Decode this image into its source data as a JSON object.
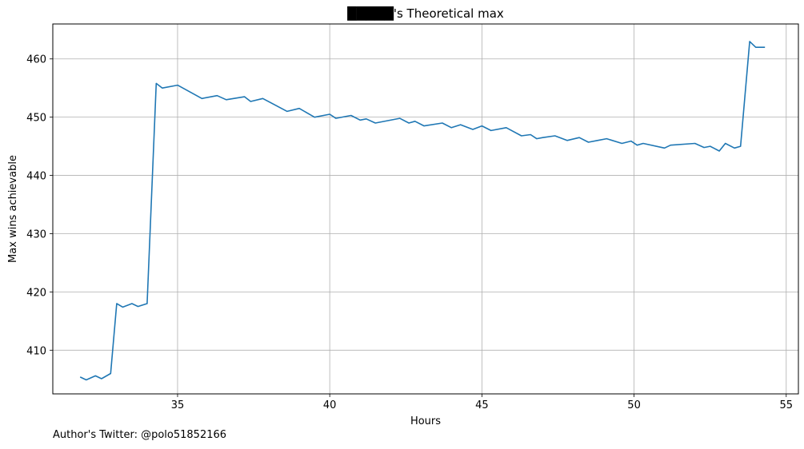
{
  "chart_data": {
    "type": "line",
    "title": "█████'s Theoretical max",
    "xlabel": "Hours",
    "ylabel": "Max wins achievable",
    "xlim": [
      30.9,
      55.4
    ],
    "ylim": [
      402.5,
      466
    ],
    "xticks": [
      35,
      40,
      45,
      50,
      55
    ],
    "yticks": [
      410,
      420,
      430,
      440,
      450,
      460
    ],
    "grid": true,
    "line_color": "#1f77b4",
    "series": [
      {
        "x": [
          31.8,
          32.0,
          32.3,
          32.5,
          32.8,
          33.0,
          33.2,
          33.5,
          33.7,
          34.0,
          34.3,
          34.5,
          35.0,
          35.8,
          36.3,
          36.6,
          37.2,
          37.4,
          37.8,
          38.6,
          39.0,
          39.5,
          40.0,
          40.2,
          40.7,
          41.0,
          41.2,
          41.5,
          42.3,
          42.6,
          42.8,
          43.1,
          43.7,
          44.0,
          44.3,
          44.7,
          45.0,
          45.3,
          45.8,
          46.3,
          46.6,
          46.8,
          47.0,
          47.4,
          47.8,
          48.2,
          48.5,
          48.8,
          49.1,
          49.6,
          49.9,
          50.1,
          50.3,
          51.0,
          51.2,
          52.0,
          52.3,
          52.5,
          52.8,
          53.0,
          53.3,
          53.5,
          53.8,
          54.0,
          54.3
        ],
        "values": [
          405.4,
          404.9,
          405.6,
          405.1,
          406.0,
          418.0,
          417.4,
          418.0,
          417.5,
          418.0,
          455.8,
          455.0,
          455.5,
          453.2,
          453.7,
          453.0,
          453.5,
          452.7,
          453.2,
          451.0,
          451.5,
          450.0,
          450.5,
          449.8,
          450.3,
          449.5,
          449.7,
          449.0,
          449.8,
          449.0,
          449.3,
          448.5,
          449.0,
          448.2,
          448.7,
          447.9,
          448.5,
          447.7,
          448.2,
          446.8,
          447.0,
          446.3,
          446.5,
          446.8,
          446.0,
          446.5,
          445.7,
          446.0,
          446.3,
          445.5,
          445.9,
          445.2,
          445.5,
          444.7,
          445.2,
          445.5,
          444.8,
          445.0,
          444.2,
          445.5,
          444.7,
          445.0,
          463.0,
          462.0,
          462.0
        ]
      }
    ]
  },
  "footer": "Author's Twitter: @polo51852166"
}
